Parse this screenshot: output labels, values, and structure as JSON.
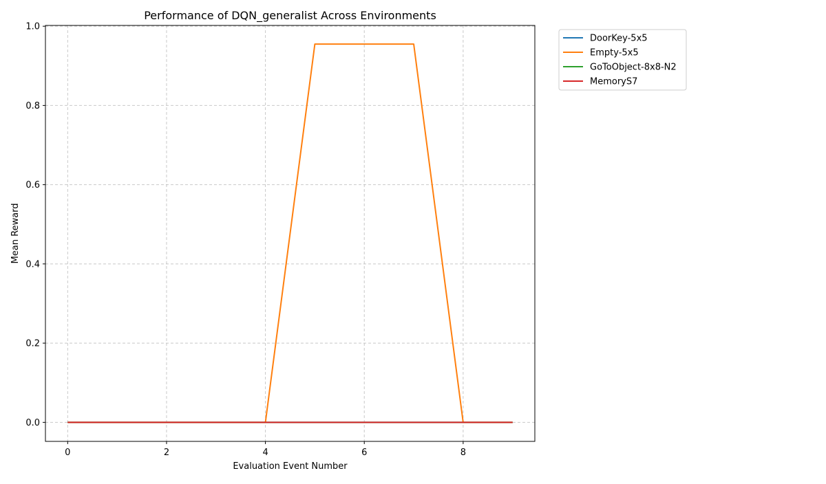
{
  "chart_data": {
    "type": "line",
    "title": "Performance of DQN_generalist Across Environments",
    "xlabel": "Evaluation Event Number",
    "ylabel": "Mean Reward",
    "xlim": [
      -0.45,
      9.45
    ],
    "ylim": [
      -0.048,
      1.002
    ],
    "x_ticks": [
      0,
      2,
      4,
      6,
      8
    ],
    "y_ticks": [
      0.0,
      0.2,
      0.4,
      0.6,
      0.8,
      1.0
    ],
    "x_tick_labels": [
      "0",
      "2",
      "4",
      "6",
      "8"
    ],
    "y_tick_labels": [
      "0.0",
      "0.2",
      "0.4",
      "0.6",
      "0.8",
      "1.0"
    ],
    "grid": true,
    "legend_position": "outside-top-right",
    "x": [
      0,
      1,
      2,
      3,
      4,
      5,
      6,
      7,
      8,
      9
    ],
    "series": [
      {
        "name": "DoorKey-5x5",
        "color": "#1f77b4",
        "values": [
          0,
          0,
          0,
          0,
          0,
          0,
          0,
          0,
          0,
          0
        ]
      },
      {
        "name": "Empty-5x5",
        "color": "#ff7f0e",
        "values": [
          0,
          0,
          0,
          0,
          0,
          0.955,
          0.955,
          0.955,
          0,
          0
        ]
      },
      {
        "name": "GoToObject-8x8-N2",
        "color": "#2ca02c",
        "values": [
          0,
          0,
          0,
          0,
          0,
          0,
          0,
          0,
          0,
          0
        ]
      },
      {
        "name": "MemoryS7",
        "color": "#d62728",
        "values": [
          0,
          0,
          0,
          0,
          0,
          0,
          0,
          0,
          0,
          0
        ]
      }
    ]
  }
}
